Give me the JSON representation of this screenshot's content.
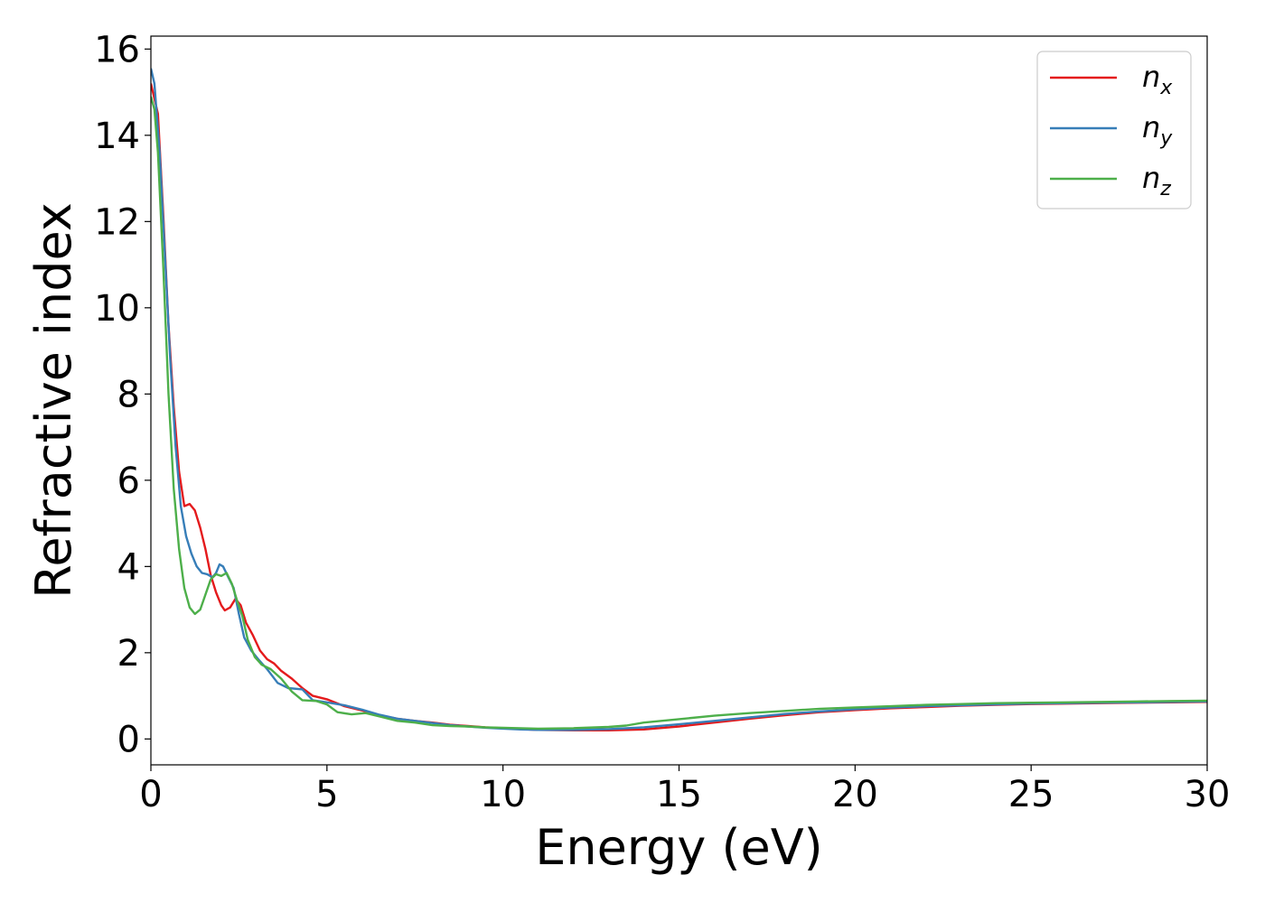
{
  "chart_data": {
    "type": "line",
    "xlabel": "Energy (eV)",
    "ylabel": "Refractive index",
    "xlim": [
      0,
      30
    ],
    "ylim": [
      -0.6,
      16.3
    ],
    "xticks": [
      "0",
      "5",
      "10",
      "15",
      "20",
      "25",
      "30"
    ],
    "yticks": [
      "0",
      "2",
      "4",
      "6",
      "8",
      "10",
      "12",
      "14",
      "16"
    ],
    "grid": false,
    "legend_position": "top-right",
    "series": [
      {
        "name": "n",
        "subscript": "x",
        "color": "#e41a1c",
        "points": [
          [
            0,
            15.2
          ],
          [
            0.2,
            14.5
          ],
          [
            0.35,
            12.2
          ],
          [
            0.5,
            9.6
          ],
          [
            0.65,
            7.7
          ],
          [
            0.8,
            6.2
          ],
          [
            0.95,
            5.4
          ],
          [
            1.1,
            5.45
          ],
          [
            1.25,
            5.3
          ],
          [
            1.4,
            4.9
          ],
          [
            1.55,
            4.4
          ],
          [
            1.7,
            3.8
          ],
          [
            1.85,
            3.4
          ],
          [
            2.0,
            3.1
          ],
          [
            2.1,
            2.98
          ],
          [
            2.25,
            3.05
          ],
          [
            2.4,
            3.25
          ],
          [
            2.55,
            3.1
          ],
          [
            2.7,
            2.7
          ],
          [
            2.9,
            2.4
          ],
          [
            3.1,
            2.05
          ],
          [
            3.3,
            1.85
          ],
          [
            3.5,
            1.75
          ],
          [
            3.7,
            1.58
          ],
          [
            4.0,
            1.4
          ],
          [
            4.3,
            1.18
          ],
          [
            4.6,
            1.0
          ],
          [
            5.0,
            0.92
          ],
          [
            5.5,
            0.76
          ],
          [
            6.0,
            0.66
          ],
          [
            6.5,
            0.55
          ],
          [
            7.0,
            0.47
          ],
          [
            7.5,
            0.42
          ],
          [
            8.0,
            0.38
          ],
          [
            8.5,
            0.33
          ],
          [
            9.0,
            0.3
          ],
          [
            9.5,
            0.27
          ],
          [
            10.0,
            0.25
          ],
          [
            10.5,
            0.23
          ],
          [
            11.0,
            0.21
          ],
          [
            12.0,
            0.2
          ],
          [
            13.0,
            0.2
          ],
          [
            14.0,
            0.22
          ],
          [
            15.0,
            0.29
          ],
          [
            16.0,
            0.38
          ],
          [
            17.0,
            0.47
          ],
          [
            18.0,
            0.55
          ],
          [
            19.0,
            0.62
          ],
          [
            20.0,
            0.67
          ],
          [
            21.0,
            0.71
          ],
          [
            22.0,
            0.74
          ],
          [
            23.0,
            0.77
          ],
          [
            24.0,
            0.79
          ],
          [
            25.0,
            0.81
          ],
          [
            26.0,
            0.82
          ],
          [
            27.0,
            0.83
          ],
          [
            28.0,
            0.84
          ],
          [
            29.0,
            0.85
          ],
          [
            30.0,
            0.86
          ]
        ]
      },
      {
        "name": "n",
        "subscript": "y",
        "color": "#377eb8",
        "points": [
          [
            0,
            15.55
          ],
          [
            0.1,
            15.2
          ],
          [
            0.25,
            13.6
          ],
          [
            0.4,
            11.2
          ],
          [
            0.55,
            8.8
          ],
          [
            0.7,
            6.8
          ],
          [
            0.85,
            5.4
          ],
          [
            1.0,
            4.7
          ],
          [
            1.15,
            4.3
          ],
          [
            1.3,
            4.0
          ],
          [
            1.45,
            3.85
          ],
          [
            1.6,
            3.82
          ],
          [
            1.75,
            3.75
          ],
          [
            1.85,
            3.85
          ],
          [
            1.95,
            4.05
          ],
          [
            2.05,
            4.0
          ],
          [
            2.2,
            3.75
          ],
          [
            2.35,
            3.5
          ],
          [
            2.5,
            2.9
          ],
          [
            2.65,
            2.35
          ],
          [
            2.85,
            2.05
          ],
          [
            3.05,
            1.85
          ],
          [
            3.3,
            1.62
          ],
          [
            3.6,
            1.3
          ],
          [
            3.9,
            1.18
          ],
          [
            4.3,
            1.15
          ],
          [
            4.6,
            0.9
          ],
          [
            5.0,
            0.85
          ],
          [
            5.5,
            0.78
          ],
          [
            6.0,
            0.68
          ],
          [
            6.5,
            0.56
          ],
          [
            7.0,
            0.47
          ],
          [
            7.5,
            0.42
          ],
          [
            8.0,
            0.37
          ],
          [
            8.5,
            0.32
          ],
          [
            9.0,
            0.29
          ],
          [
            9.5,
            0.26
          ],
          [
            10.0,
            0.24
          ],
          [
            10.5,
            0.22
          ],
          [
            11.0,
            0.21
          ],
          [
            12.0,
            0.21
          ],
          [
            13.0,
            0.23
          ],
          [
            14.0,
            0.27
          ],
          [
            15.0,
            0.34
          ],
          [
            16.0,
            0.42
          ],
          [
            17.0,
            0.5
          ],
          [
            18.0,
            0.58
          ],
          [
            19.0,
            0.64
          ],
          [
            20.0,
            0.69
          ],
          [
            21.0,
            0.73
          ],
          [
            22.0,
            0.76
          ],
          [
            23.0,
            0.78
          ],
          [
            24.0,
            0.8
          ],
          [
            25.0,
            0.82
          ],
          [
            26.0,
            0.83
          ],
          [
            27.0,
            0.84
          ],
          [
            28.0,
            0.85
          ],
          [
            29.0,
            0.86
          ],
          [
            30.0,
            0.87
          ]
        ]
      },
      {
        "name": "n",
        "subscript": "z",
        "color": "#4daf4a",
        "points": [
          [
            0,
            14.9
          ],
          [
            0.1,
            14.6
          ],
          [
            0.2,
            13.6
          ],
          [
            0.35,
            11.0
          ],
          [
            0.5,
            8.0
          ],
          [
            0.65,
            5.8
          ],
          [
            0.8,
            4.4
          ],
          [
            0.95,
            3.5
          ],
          [
            1.1,
            3.05
          ],
          [
            1.25,
            2.9
          ],
          [
            1.4,
            3.0
          ],
          [
            1.55,
            3.35
          ],
          [
            1.7,
            3.7
          ],
          [
            1.85,
            3.82
          ],
          [
            2.0,
            3.78
          ],
          [
            2.15,
            3.85
          ],
          [
            2.3,
            3.6
          ],
          [
            2.45,
            3.2
          ],
          [
            2.6,
            2.85
          ],
          [
            2.75,
            2.3
          ],
          [
            2.95,
            1.9
          ],
          [
            3.15,
            1.72
          ],
          [
            3.4,
            1.62
          ],
          [
            3.7,
            1.4
          ],
          [
            4.0,
            1.1
          ],
          [
            4.3,
            0.9
          ],
          [
            4.7,
            0.88
          ],
          [
            5.0,
            0.8
          ],
          [
            5.3,
            0.62
          ],
          [
            5.7,
            0.57
          ],
          [
            6.1,
            0.6
          ],
          [
            6.5,
            0.52
          ],
          [
            7.0,
            0.42
          ],
          [
            7.5,
            0.38
          ],
          [
            8.0,
            0.32
          ],
          [
            8.5,
            0.3
          ],
          [
            9.0,
            0.29
          ],
          [
            9.5,
            0.27
          ],
          [
            10.0,
            0.26
          ],
          [
            10.5,
            0.25
          ],
          [
            11.0,
            0.24
          ],
          [
            12.0,
            0.25
          ],
          [
            13.0,
            0.28
          ],
          [
            13.5,
            0.31
          ],
          [
            14.0,
            0.38
          ],
          [
            15.0,
            0.46
          ],
          [
            16.0,
            0.54
          ],
          [
            17.0,
            0.6
          ],
          [
            18.0,
            0.65
          ],
          [
            19.0,
            0.7
          ],
          [
            20.0,
            0.73
          ],
          [
            21.0,
            0.76
          ],
          [
            22.0,
            0.79
          ],
          [
            23.0,
            0.81
          ],
          [
            24.0,
            0.83
          ],
          [
            25.0,
            0.84
          ],
          [
            26.0,
            0.85
          ],
          [
            27.0,
            0.86
          ],
          [
            28.0,
            0.87
          ],
          [
            29.0,
            0.88
          ],
          [
            30.0,
            0.89
          ]
        ]
      }
    ]
  }
}
